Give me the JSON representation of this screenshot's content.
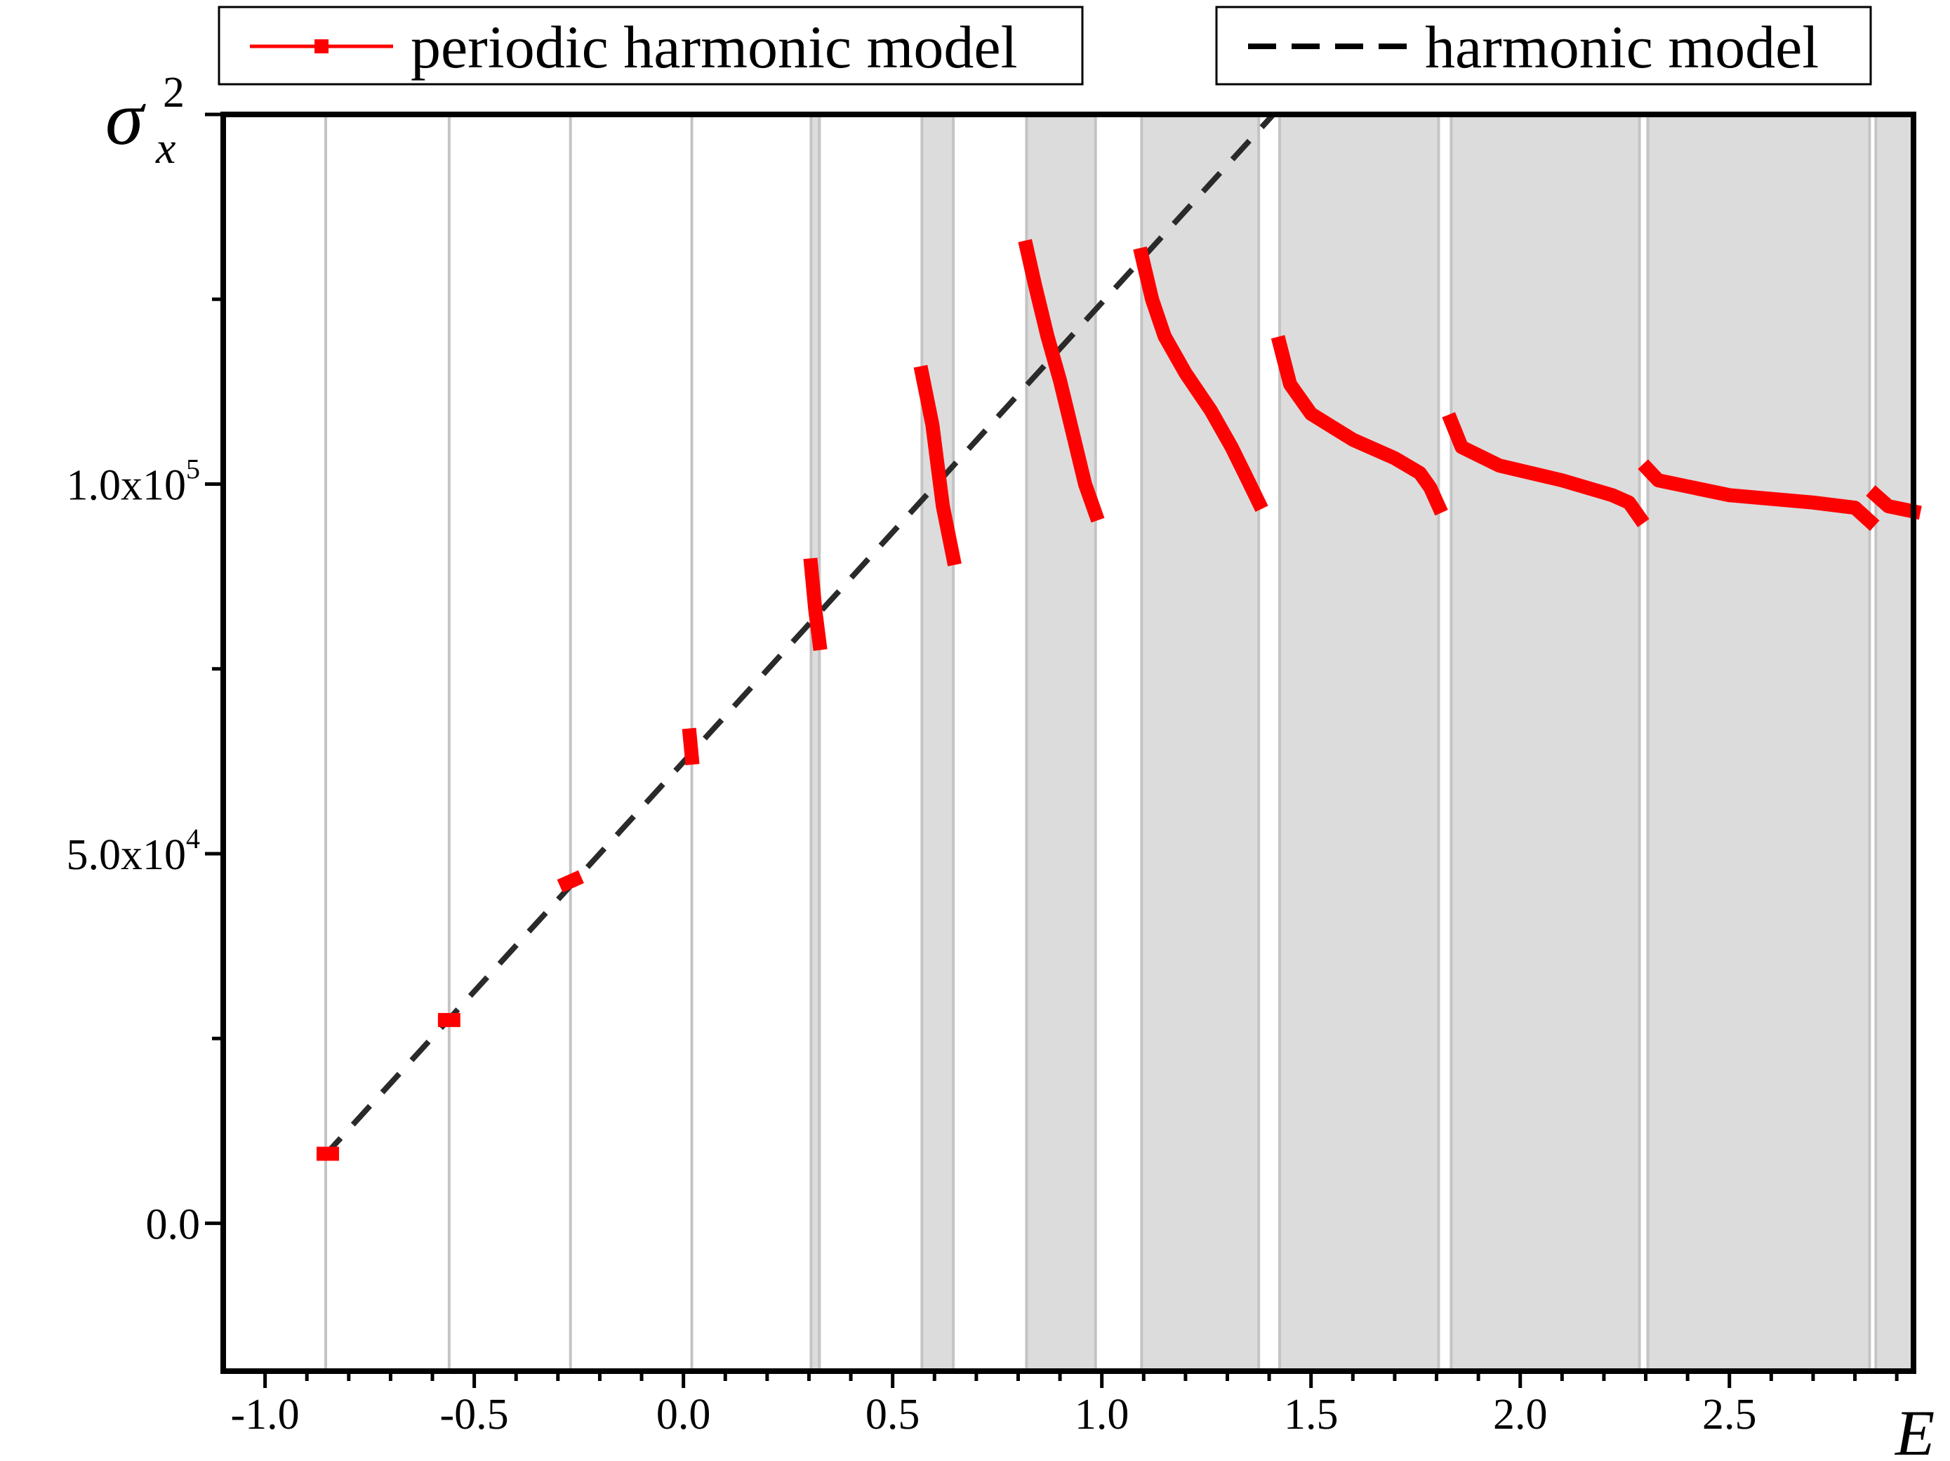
{
  "chart_data": {
    "type": "line",
    "title": "",
    "xlabel": "E",
    "ylabel": {
      "base": "σ",
      "sub": "x",
      "sup": "2"
    },
    "xlim": [
      -1.1,
      2.94
    ],
    "ylim": [
      -20000,
      150000
    ],
    "x_ticks": [
      {
        "value": -1.0,
        "label": "-1.0"
      },
      {
        "value": -0.5,
        "label": "-0.5"
      },
      {
        "value": 0.0,
        "label": "0.0"
      },
      {
        "value": 0.5,
        "label": "0.5"
      },
      {
        "value": 1.0,
        "label": "1.0"
      },
      {
        "value": 1.5,
        "label": "1.5"
      },
      {
        "value": 2.0,
        "label": "2.0"
      },
      {
        "value": 2.5,
        "label": "2.5"
      }
    ],
    "y_ticks": [
      {
        "value": 0,
        "mant": "0.0",
        "exp": ""
      },
      {
        "value": 50000,
        "mant": "5.0x10",
        "exp": "4"
      },
      {
        "value": 100000,
        "mant": "1.0x10",
        "exp": "5"
      }
    ],
    "grid": false,
    "legend": [
      {
        "name": "periodic harmonic model",
        "color": "#ff0000",
        "style": "solid-square",
        "placement": "top-left"
      },
      {
        "name": "harmonic model",
        "color": "#000000",
        "style": "dashed",
        "placement": "top-right"
      }
    ],
    "shaded_bands": [
      [
        0.305,
        0.325
      ],
      [
        0.57,
        0.645
      ],
      [
        0.82,
        0.985
      ],
      [
        1.095,
        1.375
      ],
      [
        1.425,
        1.805
      ],
      [
        1.835,
        2.285
      ],
      [
        2.305,
        2.835
      ],
      [
        2.85,
        2.94
      ]
    ],
    "vertical_lines": [
      -0.855,
      -0.56,
      -0.27,
      0.02,
      0.305,
      0.325,
      0.57,
      0.645,
      0.82,
      0.985,
      1.095,
      1.375,
      1.425,
      1.805,
      1.835,
      2.285,
      2.305,
      2.835,
      2.85
    ],
    "series": [
      {
        "name": "harmonic model",
        "color": "#000000",
        "dash": true,
        "points": [
          [
            -0.86,
            9000
          ],
          [
            1.41,
            150000
          ]
        ]
      },
      {
        "name": "periodic harmonic model",
        "color": "#ff0000",
        "segments": [
          [
            [
              -0.86,
              9400
            ],
            [
              -0.84,
              9400
            ]
          ],
          [
            [
              -0.57,
              27500
            ],
            [
              -0.55,
              27500
            ]
          ],
          [
            [
              -0.28,
              46000
            ],
            [
              -0.26,
              46500
            ]
          ],
          [
            [
              0.015,
              66000
            ],
            [
              0.02,
              63000
            ]
          ],
          [
            [
              0.305,
              89000
            ],
            [
              0.315,
              83000
            ],
            [
              0.325,
              78500
            ]
          ],
          [
            [
              0.57,
              115000
            ],
            [
              0.595,
              108000
            ],
            [
              0.62,
              97000
            ],
            [
              0.645,
              90000
            ]
          ],
          [
            [
              0.82,
              132000
            ],
            [
              0.84,
              127000
            ],
            [
              0.87,
              120000
            ],
            [
              0.9,
              114000
            ],
            [
              0.93,
              107000
            ],
            [
              0.96,
              100000
            ],
            [
              0.985,
              96000
            ]
          ],
          [
            [
              1.095,
              131000
            ],
            [
              1.12,
              125000
            ],
            [
              1.15,
              120000
            ],
            [
              1.2,
              115000
            ],
            [
              1.26,
              110000
            ],
            [
              1.31,
              105000
            ],
            [
              1.345,
              101000
            ],
            [
              1.375,
              97500
            ]
          ],
          [
            [
              1.425,
              119000
            ],
            [
              1.45,
              113500
            ],
            [
              1.5,
              109500
            ],
            [
              1.6,
              106000
            ],
            [
              1.7,
              103500
            ],
            [
              1.76,
              101500
            ],
            [
              1.785,
              99500
            ],
            [
              1.805,
              97000
            ]
          ],
          [
            [
              1.835,
              108500
            ],
            [
              1.86,
              105000
            ],
            [
              1.95,
              102500
            ],
            [
              2.1,
              100500
            ],
            [
              2.22,
              98500
            ],
            [
              2.26,
              97500
            ],
            [
              2.285,
              95500
            ]
          ],
          [
            [
              2.305,
              102000
            ],
            [
              2.33,
              100500
            ],
            [
              2.5,
              98500
            ],
            [
              2.7,
              97500
            ],
            [
              2.8,
              96800
            ],
            [
              2.835,
              95000
            ]
          ],
          [
            [
              2.85,
              98500
            ],
            [
              2.88,
              97000
            ],
            [
              2.94,
              96300
            ]
          ]
        ]
      }
    ]
  }
}
